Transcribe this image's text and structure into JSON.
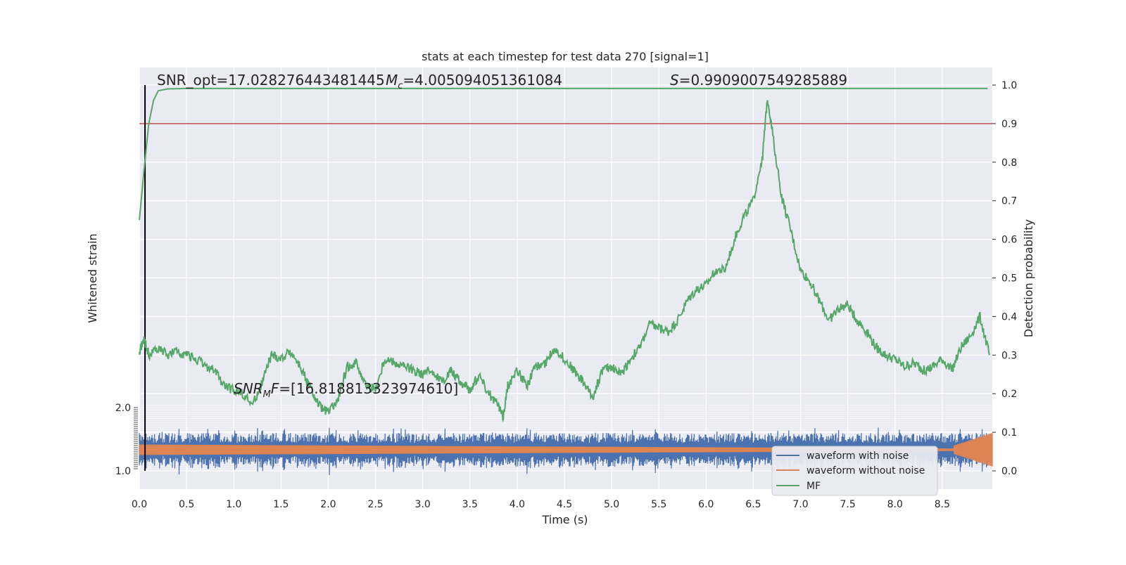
{
  "chart_data": {
    "type": "line",
    "title": "stats at each timestep for test data 270 [signal=1]",
    "xlabel": "Time (s)",
    "ylabel_left": "Whitened strain",
    "ylabel_right": "Detection probability",
    "xlim": [
      0.0,
      9.0
    ],
    "ylim_right": [
      -0.05,
      1.05
    ],
    "x_ticks": [
      "0.0",
      "0.5",
      "1.0",
      "1.5",
      "2.0",
      "2.5",
      "3.0",
      "3.5",
      "4.0",
      "4.5",
      "5.0",
      "5.5",
      "6.0",
      "6.5",
      "7.0",
      "7.5",
      "8.0",
      "8.5"
    ],
    "right_ticks": [
      "0.0",
      "0.1",
      "0.2",
      "0.3",
      "0.4",
      "0.5",
      "0.6",
      "0.7",
      "0.8",
      "0.9",
      "1.0"
    ],
    "left_ticks_visible": [
      "2.0",
      "1.0"
    ],
    "grid": true,
    "legend_position": "lower-right",
    "annotations": {
      "snr_opt": "SNR_opt=17.028276443481445",
      "mc_symbol": "M",
      "mc_sub": "c",
      "mc_value": "=4.005094051361084",
      "s_symbol": "S",
      "s_value": "=0.9909007549285889",
      "snr_mf_symbol": "SNR",
      "snr_mf_sub": "M",
      "snr_mf_f": "F",
      "snr_mf_value": "=[16.818813323974610]"
    },
    "threshold": 0.9,
    "marker_time": 0.06,
    "series": [
      {
        "name": "waveform with noise",
        "color": "#4c72b0",
        "description_points": []
      },
      {
        "name": "waveform without noise",
        "color": "#dd8452"
      },
      {
        "name": "MF",
        "color": "#55a868"
      }
    ],
    "detection_prob_series": {
      "color": "#55a868",
      "x": [
        0.0,
        0.05,
        0.1,
        0.15,
        0.2,
        0.3,
        0.5,
        9.0
      ],
      "y": [
        0.65,
        0.78,
        0.9,
        0.96,
        0.985,
        0.99,
        0.991,
        0.991
      ]
    },
    "mf_series": {
      "color": "#55a868",
      "x": [
        0.0,
        0.05,
        0.1,
        0.2,
        0.3,
        0.4,
        0.5,
        0.6,
        0.7,
        0.8,
        0.9,
        1.0,
        1.1,
        1.2,
        1.3,
        1.4,
        1.5,
        1.6,
        1.7,
        1.8,
        1.9,
        2.0,
        2.1,
        2.2,
        2.3,
        2.4,
        2.5,
        2.6,
        2.7,
        2.8,
        2.9,
        3.0,
        3.1,
        3.2,
        3.3,
        3.4,
        3.5,
        3.6,
        3.7,
        3.8,
        3.85,
        3.9,
        4.0,
        4.1,
        4.2,
        4.3,
        4.4,
        4.5,
        4.6,
        4.7,
        4.8,
        4.9,
        5.0,
        5.1,
        5.2,
        5.3,
        5.4,
        5.5,
        5.6,
        5.7,
        5.8,
        5.9,
        6.0,
        6.1,
        6.2,
        6.3,
        6.4,
        6.5,
        6.6,
        6.65,
        6.7,
        6.8,
        6.9,
        7.0,
        7.1,
        7.2,
        7.3,
        7.4,
        7.5,
        7.6,
        7.7,
        7.8,
        7.9,
        8.0,
        8.1,
        8.2,
        8.3,
        8.4,
        8.5,
        8.6,
        8.7,
        8.8,
        8.9,
        9.0
      ],
      "y": [
        0.31,
        0.34,
        0.3,
        0.32,
        0.3,
        0.31,
        0.3,
        0.29,
        0.27,
        0.26,
        0.22,
        0.21,
        0.2,
        0.17,
        0.23,
        0.3,
        0.29,
        0.31,
        0.27,
        0.22,
        0.17,
        0.15,
        0.18,
        0.27,
        0.28,
        0.22,
        0.21,
        0.29,
        0.28,
        0.27,
        0.26,
        0.25,
        0.26,
        0.23,
        0.26,
        0.23,
        0.21,
        0.25,
        0.2,
        0.17,
        0.14,
        0.22,
        0.26,
        0.22,
        0.27,
        0.28,
        0.32,
        0.29,
        0.26,
        0.23,
        0.19,
        0.26,
        0.27,
        0.25,
        0.29,
        0.32,
        0.38,
        0.37,
        0.36,
        0.39,
        0.44,
        0.47,
        0.48,
        0.52,
        0.52,
        0.6,
        0.66,
        0.7,
        0.82,
        0.97,
        0.88,
        0.71,
        0.62,
        0.52,
        0.49,
        0.44,
        0.39,
        0.42,
        0.43,
        0.39,
        0.36,
        0.32,
        0.3,
        0.29,
        0.27,
        0.28,
        0.26,
        0.27,
        0.29,
        0.26,
        0.32,
        0.35,
        0.4,
        0.3
      ]
    }
  }
}
